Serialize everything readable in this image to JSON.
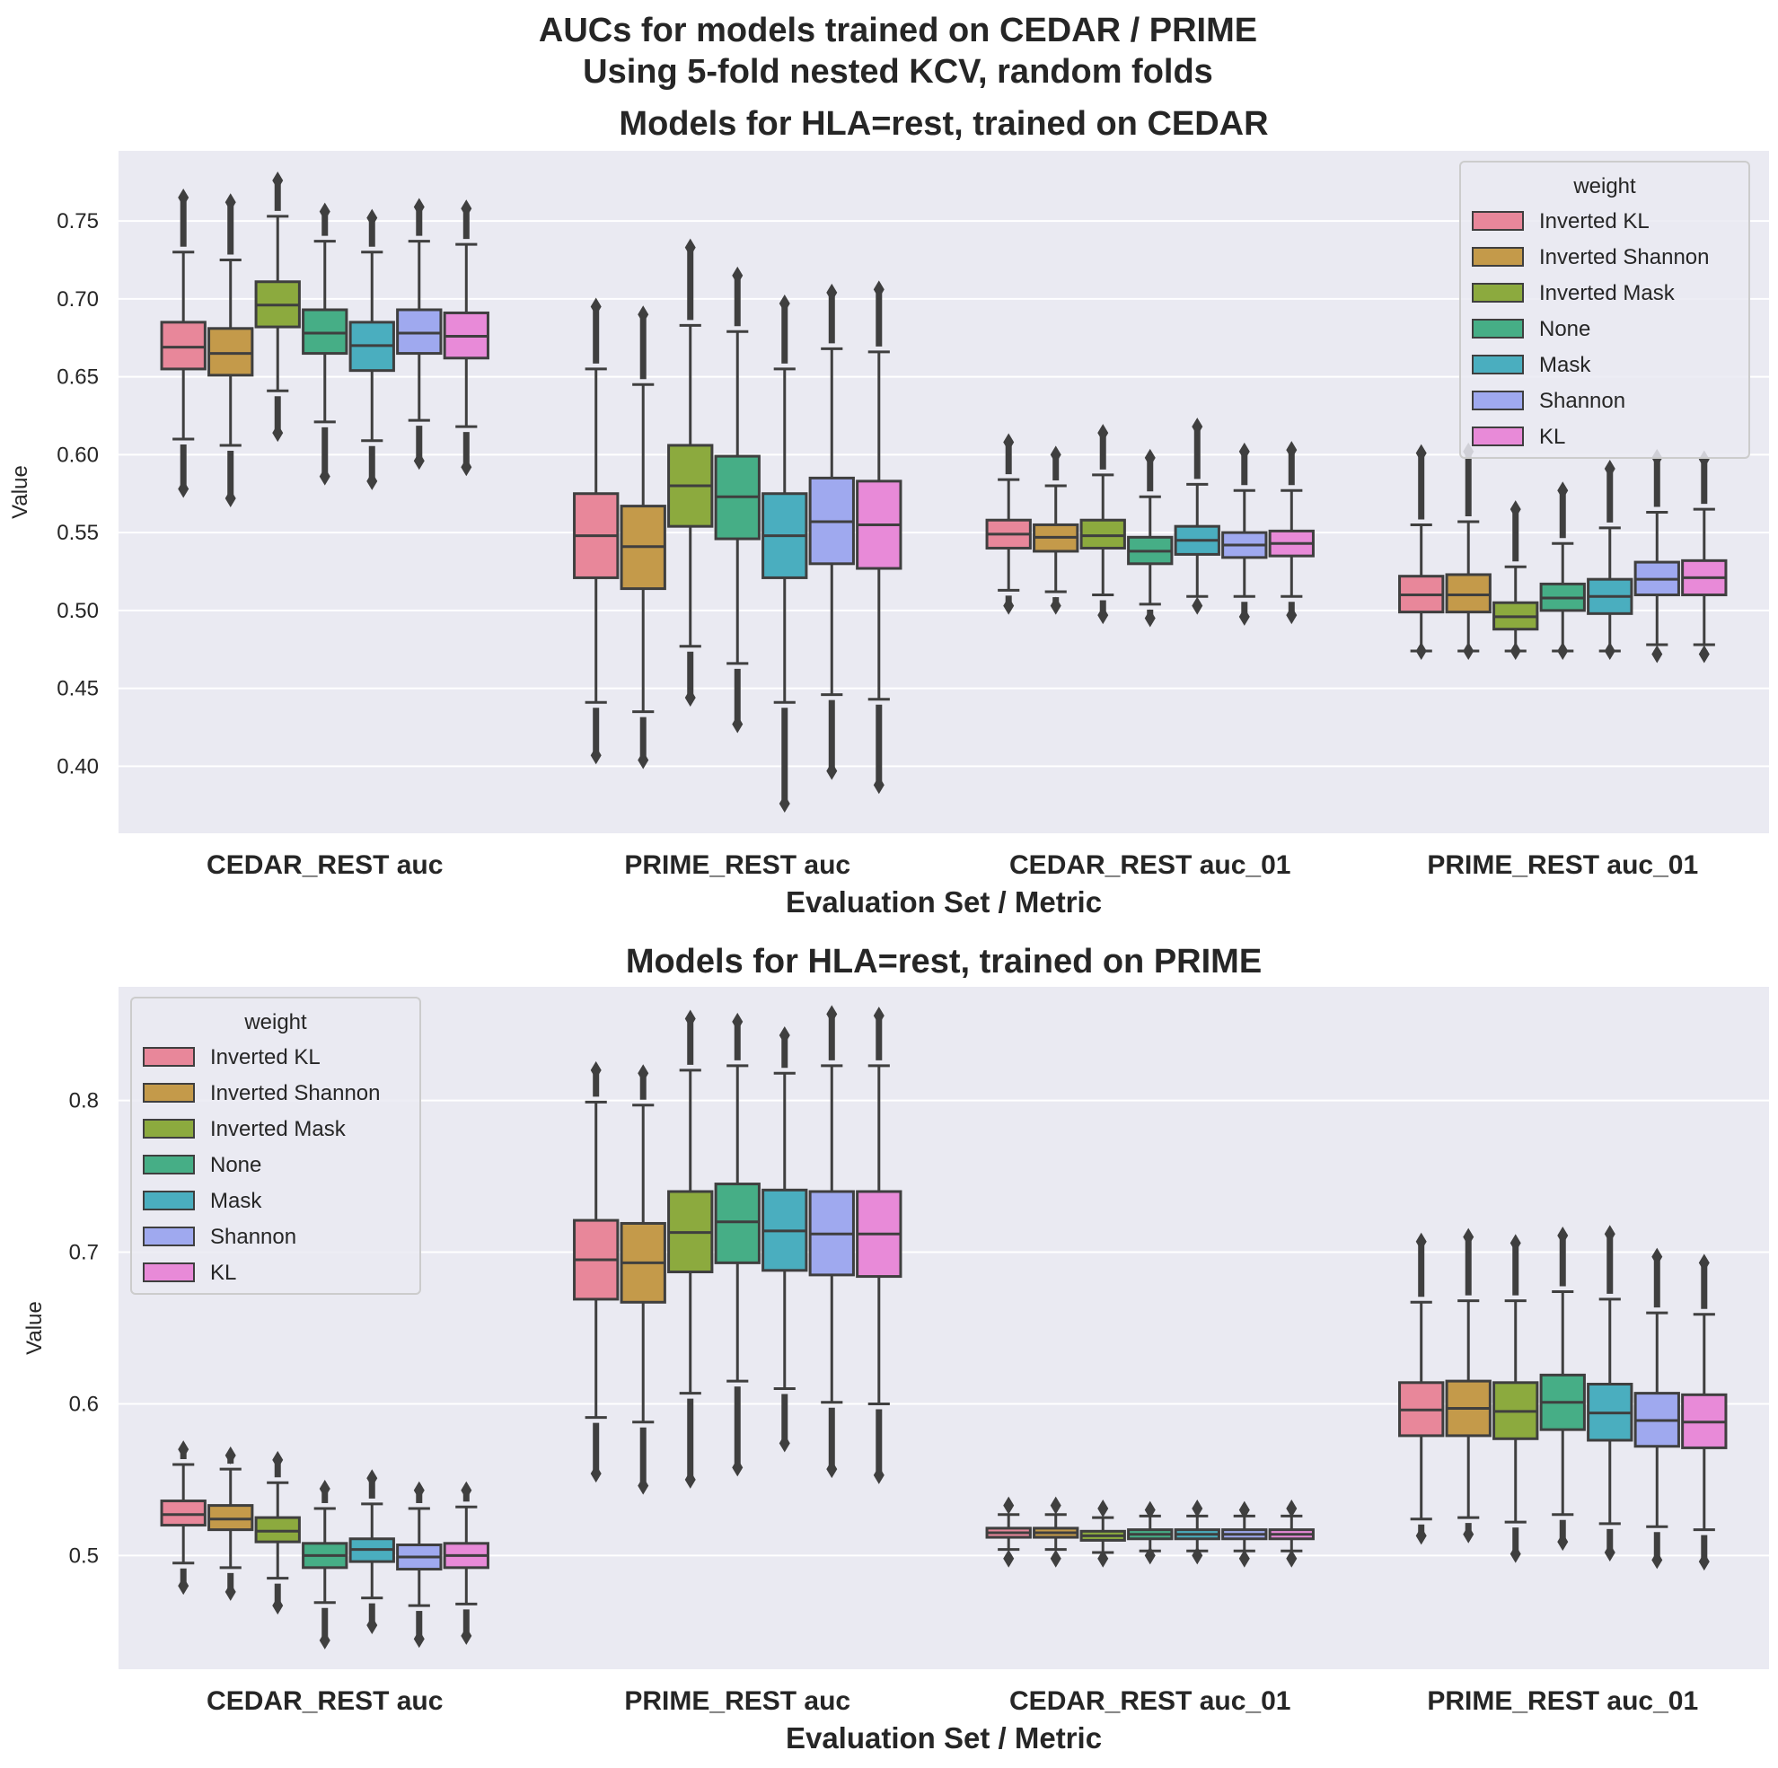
{
  "suptitle": [
    "AUCs for models trained on CEDAR / PRIME",
    "Using 5-fold nested KCV, random folds"
  ],
  "chart_data": [
    {
      "type": "boxplot",
      "title": "Models for HLA=rest, trained on CEDAR",
      "xlabel": "Evaluation Set / Metric",
      "ylabel": "Value",
      "categories": [
        "CEDAR_REST auc",
        "PRIME_REST auc",
        "CEDAR_REST auc_01",
        "PRIME_REST auc_01"
      ],
      "ylim": [
        0.357,
        0.795
      ],
      "yticks": [
        "0.40",
        "0.45",
        "0.50",
        "0.55",
        "0.60",
        "0.65",
        "0.70",
        "0.75"
      ],
      "grid": true,
      "legend": {
        "title": "weight",
        "position": "top-right"
      },
      "series": [
        {
          "name": "Inverted KL",
          "color": "#e8879a",
          "values": [
            {
              "q1": 0.655,
              "median": 0.669,
              "q3": 0.685,
              "whislo": 0.61,
              "whishi": 0.73,
              "outlo": 0.578,
              "outhi": 0.765
            },
            {
              "q1": 0.521,
              "median": 0.548,
              "q3": 0.575,
              "whislo": 0.441,
              "whishi": 0.655,
              "outlo": 0.407,
              "outhi": 0.695
            },
            {
              "q1": 0.54,
              "median": 0.549,
              "q3": 0.558,
              "whislo": 0.513,
              "whishi": 0.584,
              "outlo": 0.503,
              "outhi": 0.608
            },
            {
              "q1": 0.499,
              "median": 0.51,
              "q3": 0.522,
              "whislo": 0.474,
              "whishi": 0.555,
              "outlo": 0.474,
              "outhi": 0.601
            }
          ]
        },
        {
          "name": "Inverted Shannon",
          "color": "#c49a4a",
          "values": [
            {
              "q1": 0.651,
              "median": 0.665,
              "q3": 0.681,
              "whislo": 0.606,
              "whishi": 0.725,
              "outlo": 0.572,
              "outhi": 0.762
            },
            {
              "q1": 0.514,
              "median": 0.541,
              "q3": 0.567,
              "whislo": 0.435,
              "whishi": 0.645,
              "outlo": 0.404,
              "outhi": 0.69
            },
            {
              "q1": 0.538,
              "median": 0.547,
              "q3": 0.555,
              "whislo": 0.512,
              "whishi": 0.58,
              "outlo": 0.503,
              "outhi": 0.6
            },
            {
              "q1": 0.499,
              "median": 0.51,
              "q3": 0.523,
              "whislo": 0.474,
              "whishi": 0.557,
              "outlo": 0.474,
              "outhi": 0.602
            }
          ]
        },
        {
          "name": "Inverted Mask",
          "color": "#8caa3e",
          "values": [
            {
              "q1": 0.682,
              "median": 0.696,
              "q3": 0.711,
              "whislo": 0.641,
              "whishi": 0.753,
              "outlo": 0.614,
              "outhi": 0.776
            },
            {
              "q1": 0.554,
              "median": 0.58,
              "q3": 0.606,
              "whislo": 0.477,
              "whishi": 0.683,
              "outlo": 0.444,
              "outhi": 0.733
            },
            {
              "q1": 0.54,
              "median": 0.548,
              "q3": 0.558,
              "whislo": 0.51,
              "whishi": 0.587,
              "outlo": 0.497,
              "outhi": 0.614
            },
            {
              "q1": 0.488,
              "median": 0.496,
              "q3": 0.505,
              "whislo": 0.474,
              "whishi": 0.528,
              "outlo": 0.474,
              "outhi": 0.565
            }
          ]
        },
        {
          "name": "None",
          "color": "#46ae86",
          "values": [
            {
              "q1": 0.665,
              "median": 0.678,
              "q3": 0.693,
              "whislo": 0.621,
              "whishi": 0.737,
              "outlo": 0.586,
              "outhi": 0.756
            },
            {
              "q1": 0.546,
              "median": 0.573,
              "q3": 0.599,
              "whislo": 0.466,
              "whishi": 0.679,
              "outlo": 0.427,
              "outhi": 0.715
            },
            {
              "q1": 0.53,
              "median": 0.538,
              "q3": 0.547,
              "whislo": 0.504,
              "whishi": 0.573,
              "outlo": 0.495,
              "outhi": 0.598
            },
            {
              "q1": 0.5,
              "median": 0.508,
              "q3": 0.517,
              "whislo": 0.474,
              "whishi": 0.543,
              "outlo": 0.474,
              "outhi": 0.577
            }
          ]
        },
        {
          "name": "Mask",
          "color": "#4aaebf",
          "values": [
            {
              "q1": 0.654,
              "median": 0.67,
              "q3": 0.685,
              "whislo": 0.609,
              "whishi": 0.73,
              "outlo": 0.583,
              "outhi": 0.752
            },
            {
              "q1": 0.521,
              "median": 0.548,
              "q3": 0.575,
              "whislo": 0.441,
              "whishi": 0.655,
              "outlo": 0.376,
              "outhi": 0.697
            },
            {
              "q1": 0.536,
              "median": 0.545,
              "q3": 0.554,
              "whislo": 0.509,
              "whishi": 0.581,
              "outlo": 0.503,
              "outhi": 0.618
            },
            {
              "q1": 0.498,
              "median": 0.509,
              "q3": 0.52,
              "whislo": 0.474,
              "whishi": 0.553,
              "outlo": 0.474,
              "outhi": 0.591
            }
          ]
        },
        {
          "name": "Shannon",
          "color": "#9fa9ef",
          "values": [
            {
              "q1": 0.665,
              "median": 0.678,
              "q3": 0.693,
              "whislo": 0.622,
              "whishi": 0.737,
              "outlo": 0.596,
              "outhi": 0.759
            },
            {
              "q1": 0.53,
              "median": 0.557,
              "q3": 0.585,
              "whislo": 0.446,
              "whishi": 0.668,
              "outlo": 0.397,
              "outhi": 0.704
            },
            {
              "q1": 0.534,
              "median": 0.542,
              "q3": 0.55,
              "whislo": 0.509,
              "whishi": 0.577,
              "outlo": 0.496,
              "outhi": 0.602
            },
            {
              "q1": 0.51,
              "median": 0.52,
              "q3": 0.531,
              "whislo": 0.478,
              "whishi": 0.563,
              "outlo": 0.472,
              "outhi": 0.598
            }
          ]
        },
        {
          "name": "KL",
          "color": "#e88ad8",
          "values": [
            {
              "q1": 0.662,
              "median": 0.676,
              "q3": 0.691,
              "whislo": 0.618,
              "whishi": 0.735,
              "outlo": 0.592,
              "outhi": 0.758
            },
            {
              "q1": 0.527,
              "median": 0.555,
              "q3": 0.583,
              "whislo": 0.443,
              "whishi": 0.666,
              "outlo": 0.388,
              "outhi": 0.706
            },
            {
              "q1": 0.535,
              "median": 0.543,
              "q3": 0.551,
              "whislo": 0.509,
              "whishi": 0.577,
              "outlo": 0.497,
              "outhi": 0.603
            },
            {
              "q1": 0.51,
              "median": 0.521,
              "q3": 0.532,
              "whislo": 0.478,
              "whishi": 0.565,
              "outlo": 0.472,
              "outhi": 0.597
            }
          ]
        }
      ]
    },
    {
      "type": "boxplot",
      "title": "Models for HLA=rest, trained on PRIME",
      "xlabel": "Evaluation Set / Metric",
      "ylabel": "Value",
      "categories": [
        "CEDAR_REST auc",
        "PRIME_REST auc",
        "CEDAR_REST auc_01",
        "PRIME_REST auc_01"
      ],
      "ylim": [
        0.425,
        0.875
      ],
      "yticks": [
        "0.5",
        "0.6",
        "0.7",
        "0.8"
      ],
      "grid": true,
      "legend": {
        "title": "weight",
        "position": "top-left"
      },
      "series": [
        {
          "name": "Inverted KL",
          "color": "#e8879a",
          "values": [
            {
              "q1": 0.52,
              "median": 0.527,
              "q3": 0.536,
              "whislo": 0.495,
              "whishi": 0.56,
              "outlo": 0.48,
              "outhi": 0.57
            },
            {
              "q1": 0.669,
              "median": 0.695,
              "q3": 0.721,
              "whislo": 0.591,
              "whishi": 0.799,
              "outlo": 0.554,
              "outhi": 0.82
            },
            {
              "q1": 0.512,
              "median": 0.515,
              "q3": 0.518,
              "whislo": 0.504,
              "whishi": 0.527,
              "outlo": 0.498,
              "outhi": 0.533
            },
            {
              "q1": 0.579,
              "median": 0.596,
              "q3": 0.614,
              "whislo": 0.524,
              "whishi": 0.667,
              "outlo": 0.513,
              "outhi": 0.707
            }
          ]
        },
        {
          "name": "Inverted Shannon",
          "color": "#c49a4a",
          "values": [
            {
              "q1": 0.517,
              "median": 0.524,
              "q3": 0.533,
              "whislo": 0.492,
              "whishi": 0.557,
              "outlo": 0.476,
              "outhi": 0.566
            },
            {
              "q1": 0.667,
              "median": 0.693,
              "q3": 0.719,
              "whislo": 0.588,
              "whishi": 0.797,
              "outlo": 0.546,
              "outhi": 0.818
            },
            {
              "q1": 0.512,
              "median": 0.515,
              "q3": 0.518,
              "whislo": 0.504,
              "whishi": 0.527,
              "outlo": 0.498,
              "outhi": 0.533
            },
            {
              "q1": 0.579,
              "median": 0.597,
              "q3": 0.615,
              "whislo": 0.525,
              "whishi": 0.668,
              "outlo": 0.514,
              "outhi": 0.71
            }
          ]
        },
        {
          "name": "Inverted Mask",
          "color": "#8caa3e",
          "values": [
            {
              "q1": 0.509,
              "median": 0.516,
              "q3": 0.525,
              "whislo": 0.485,
              "whishi": 0.548,
              "outlo": 0.467,
              "outhi": 0.563
            },
            {
              "q1": 0.687,
              "median": 0.713,
              "q3": 0.74,
              "whislo": 0.607,
              "whishi": 0.82,
              "outlo": 0.55,
              "outhi": 0.854
            },
            {
              "q1": 0.51,
              "median": 0.513,
              "q3": 0.516,
              "whislo": 0.502,
              "whishi": 0.525,
              "outlo": 0.498,
              "outhi": 0.531
            },
            {
              "q1": 0.577,
              "median": 0.595,
              "q3": 0.614,
              "whislo": 0.522,
              "whishi": 0.668,
              "outlo": 0.501,
              "outhi": 0.706
            }
          ]
        },
        {
          "name": "None",
          "color": "#46ae86",
          "values": [
            {
              "q1": 0.492,
              "median": 0.5,
              "q3": 0.508,
              "whislo": 0.469,
              "whishi": 0.531,
              "outlo": 0.444,
              "outhi": 0.544
            },
            {
              "q1": 0.693,
              "median": 0.72,
              "q3": 0.745,
              "whislo": 0.615,
              "whishi": 0.823,
              "outlo": 0.558,
              "outhi": 0.852
            },
            {
              "q1": 0.511,
              "median": 0.514,
              "q3": 0.517,
              "whislo": 0.503,
              "whishi": 0.526,
              "outlo": 0.5,
              "outhi": 0.53
            },
            {
              "q1": 0.583,
              "median": 0.601,
              "q3": 0.619,
              "whislo": 0.527,
              "whishi": 0.674,
              "outlo": 0.509,
              "outhi": 0.711
            }
          ]
        },
        {
          "name": "Mask",
          "color": "#4aaebf",
          "values": [
            {
              "q1": 0.496,
              "median": 0.504,
              "q3": 0.511,
              "whislo": 0.472,
              "whishi": 0.534,
              "outlo": 0.454,
              "outhi": 0.551
            },
            {
              "q1": 0.688,
              "median": 0.714,
              "q3": 0.741,
              "whislo": 0.61,
              "whishi": 0.818,
              "outlo": 0.574,
              "outhi": 0.843
            },
            {
              "q1": 0.511,
              "median": 0.514,
              "q3": 0.517,
              "whislo": 0.503,
              "whishi": 0.526,
              "outlo": 0.5,
              "outhi": 0.531
            },
            {
              "q1": 0.576,
              "median": 0.594,
              "q3": 0.613,
              "whislo": 0.521,
              "whishi": 0.669,
              "outlo": 0.502,
              "outhi": 0.712
            }
          ]
        },
        {
          "name": "Shannon",
          "color": "#9fa9ef",
          "values": [
            {
              "q1": 0.491,
              "median": 0.499,
              "q3": 0.507,
              "whislo": 0.467,
              "whishi": 0.531,
              "outlo": 0.445,
              "outhi": 0.543
            },
            {
              "q1": 0.685,
              "median": 0.712,
              "q3": 0.74,
              "whislo": 0.601,
              "whishi": 0.823,
              "outlo": 0.557,
              "outhi": 0.857
            },
            {
              "q1": 0.511,
              "median": 0.514,
              "q3": 0.517,
              "whislo": 0.503,
              "whishi": 0.526,
              "outlo": 0.498,
              "outhi": 0.53
            },
            {
              "q1": 0.572,
              "median": 0.589,
              "q3": 0.607,
              "whislo": 0.519,
              "whishi": 0.66,
              "outlo": 0.497,
              "outhi": 0.697
            }
          ]
        },
        {
          "name": "KL",
          "color": "#e88ad8",
          "values": [
            {
              "q1": 0.492,
              "median": 0.5,
              "q3": 0.508,
              "whislo": 0.468,
              "whishi": 0.532,
              "outlo": 0.447,
              "outhi": 0.543
            },
            {
              "q1": 0.684,
              "median": 0.712,
              "q3": 0.74,
              "whislo": 0.6,
              "whishi": 0.823,
              "outlo": 0.553,
              "outhi": 0.856
            },
            {
              "q1": 0.511,
              "median": 0.514,
              "q3": 0.517,
              "whislo": 0.503,
              "whishi": 0.526,
              "outlo": 0.498,
              "outhi": 0.531
            },
            {
              "q1": 0.571,
              "median": 0.588,
              "q3": 0.606,
              "whislo": 0.517,
              "whishi": 0.659,
              "outlo": 0.496,
              "outhi": 0.693
            }
          ]
        }
      ]
    }
  ]
}
